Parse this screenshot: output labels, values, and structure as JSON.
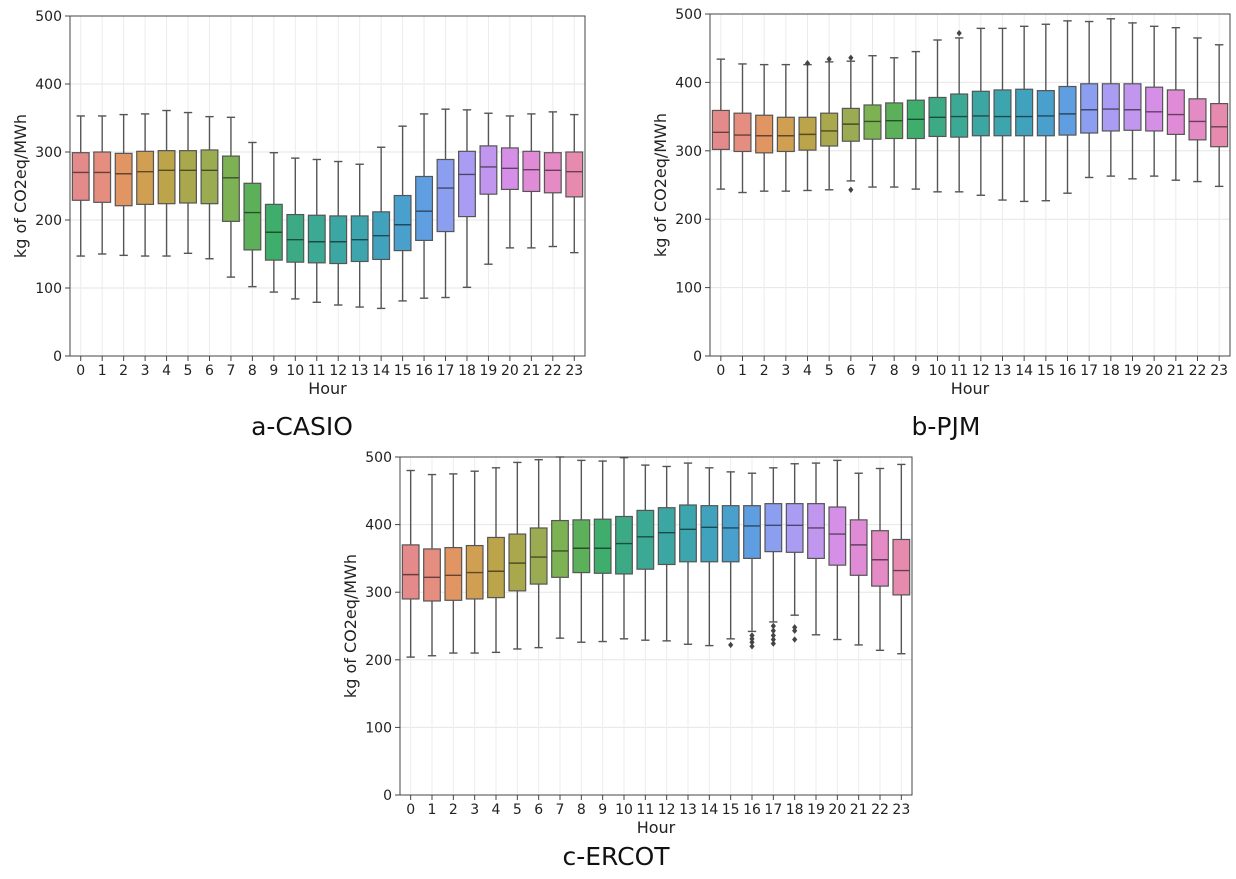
{
  "captions": [
    "a-CASIO",
    "b-PJM",
    "c-ERCOT"
  ],
  "palette": [
    "#e58a8a",
    "#e58d7e",
    "#e19563",
    "#d19f52",
    "#bca44a",
    "#aaa84d",
    "#9bab52",
    "#7cb254",
    "#5cb05a",
    "#3fae6d",
    "#3cab85",
    "#3ca995",
    "#3ca7a2",
    "#3da5ae",
    "#40a2bc",
    "#49a0cc",
    "#5f9ee0",
    "#8b9ef0",
    "#a99cf2",
    "#c096ee",
    "#d68fe6",
    "#e08bd5",
    "#e48ac4",
    "#e68bae"
  ],
  "chart_data": [
    {
      "type": "box",
      "panel": "a-CASIO",
      "xlabel": "Hour",
      "ylabel": "kg of CO2eq/MWh",
      "ylim": [
        0,
        500
      ],
      "yticks": [
        0,
        100,
        200,
        300,
        400,
        500
      ],
      "grid": true,
      "categories": [
        "0",
        "1",
        "2",
        "3",
        "4",
        "5",
        "6",
        "7",
        "8",
        "9",
        "10",
        "11",
        "12",
        "13",
        "14",
        "15",
        "16",
        "17",
        "18",
        "19",
        "20",
        "21",
        "22",
        "23"
      ],
      "boxes": [
        {
          "whislo": 147,
          "q1": 229,
          "med": 270,
          "q3": 299,
          "whishi": 353,
          "fliers": []
        },
        {
          "whislo": 150,
          "q1": 226,
          "med": 270,
          "q3": 300,
          "whishi": 353,
          "fliers": []
        },
        {
          "whislo": 148,
          "q1": 221,
          "med": 268,
          "q3": 298,
          "whishi": 355,
          "fliers": []
        },
        {
          "whislo": 147,
          "q1": 223,
          "med": 271,
          "q3": 301,
          "whishi": 356,
          "fliers": []
        },
        {
          "whislo": 147,
          "q1": 224,
          "med": 273,
          "q3": 302,
          "whishi": 361,
          "fliers": []
        },
        {
          "whislo": 151,
          "q1": 225,
          "med": 273,
          "q3": 302,
          "whishi": 358,
          "fliers": []
        },
        {
          "whislo": 143,
          "q1": 224,
          "med": 273,
          "q3": 303,
          "whishi": 352,
          "fliers": []
        },
        {
          "whislo": 116,
          "q1": 198,
          "med": 262,
          "q3": 294,
          "whishi": 351,
          "fliers": []
        },
        {
          "whislo": 102,
          "q1": 156,
          "med": 211,
          "q3": 254,
          "whishi": 314,
          "fliers": []
        },
        {
          "whislo": 94,
          "q1": 141,
          "med": 182,
          "q3": 223,
          "whishi": 299,
          "fliers": []
        },
        {
          "whislo": 84,
          "q1": 138,
          "med": 171,
          "q3": 208,
          "whishi": 291,
          "fliers": []
        },
        {
          "whislo": 79,
          "q1": 137,
          "med": 168,
          "q3": 207,
          "whishi": 289,
          "fliers": []
        },
        {
          "whislo": 75,
          "q1": 136,
          "med": 168,
          "q3": 206,
          "whishi": 286,
          "fliers": []
        },
        {
          "whislo": 72,
          "q1": 139,
          "med": 171,
          "q3": 206,
          "whishi": 282,
          "fliers": []
        },
        {
          "whislo": 70,
          "q1": 142,
          "med": 177,
          "q3": 212,
          "whishi": 307,
          "fliers": []
        },
        {
          "whislo": 81,
          "q1": 155,
          "med": 193,
          "q3": 236,
          "whishi": 338,
          "fliers": []
        },
        {
          "whislo": 85,
          "q1": 170,
          "med": 213,
          "q3": 264,
          "whishi": 356,
          "fliers": []
        },
        {
          "whislo": 86,
          "q1": 183,
          "med": 247,
          "q3": 289,
          "whishi": 363,
          "fliers": []
        },
        {
          "whislo": 101,
          "q1": 205,
          "med": 267,
          "q3": 301,
          "whishi": 362,
          "fliers": []
        },
        {
          "whislo": 135,
          "q1": 238,
          "med": 278,
          "q3": 309,
          "whishi": 357,
          "fliers": []
        },
        {
          "whislo": 159,
          "q1": 245,
          "med": 276,
          "q3": 306,
          "whishi": 353,
          "fliers": []
        },
        {
          "whislo": 159,
          "q1": 242,
          "med": 274,
          "q3": 301,
          "whishi": 356,
          "fliers": []
        },
        {
          "whislo": 161,
          "q1": 240,
          "med": 273,
          "q3": 299,
          "whishi": 359,
          "fliers": []
        },
        {
          "whislo": 152,
          "q1": 234,
          "med": 271,
          "q3": 300,
          "whishi": 355,
          "fliers": []
        }
      ]
    },
    {
      "type": "box",
      "panel": "b-PJM",
      "xlabel": "Hour",
      "ylabel": "kg of CO2eq/MWh",
      "ylim": [
        0,
        500
      ],
      "yticks": [
        0,
        100,
        200,
        300,
        400,
        500
      ],
      "grid": true,
      "categories": [
        "0",
        "1",
        "2",
        "3",
        "4",
        "5",
        "6",
        "7",
        "8",
        "9",
        "10",
        "11",
        "12",
        "13",
        "14",
        "15",
        "16",
        "17",
        "18",
        "19",
        "20",
        "21",
        "22",
        "23"
      ],
      "boxes": [
        {
          "whislo": 244,
          "q1": 302,
          "med": 327,
          "q3": 359,
          "whishi": 434,
          "fliers": []
        },
        {
          "whislo": 239,
          "q1": 299,
          "med": 323,
          "q3": 355,
          "whishi": 427,
          "fliers": []
        },
        {
          "whislo": 241,
          "q1": 297,
          "med": 322,
          "q3": 352,
          "whishi": 426,
          "fliers": []
        },
        {
          "whislo": 241,
          "q1": 299,
          "med": 322,
          "q3": 349,
          "whishi": 426,
          "fliers": []
        },
        {
          "whislo": 242,
          "q1": 301,
          "med": 324,
          "q3": 349,
          "whishi": 426,
          "fliers": [
            428
          ]
        },
        {
          "whislo": 243,
          "q1": 307,
          "med": 329,
          "q3": 355,
          "whishi": 430,
          "fliers": [
            434
          ]
        },
        {
          "whislo": 256,
          "q1": 314,
          "med": 339,
          "q3": 362,
          "whishi": 431,
          "fliers": [
            436,
            243
          ]
        },
        {
          "whislo": 247,
          "q1": 317,
          "med": 343,
          "q3": 367,
          "whishi": 439,
          "fliers": []
        },
        {
          "whislo": 247,
          "q1": 318,
          "med": 344,
          "q3": 370,
          "whishi": 436,
          "fliers": []
        },
        {
          "whislo": 244,
          "q1": 318,
          "med": 346,
          "q3": 374,
          "whishi": 445,
          "fliers": []
        },
        {
          "whislo": 240,
          "q1": 321,
          "med": 349,
          "q3": 378,
          "whishi": 462,
          "fliers": []
        },
        {
          "whislo": 240,
          "q1": 320,
          "med": 350,
          "q3": 383,
          "whishi": 465,
          "fliers": [
            472
          ]
        },
        {
          "whislo": 235,
          "q1": 322,
          "med": 351,
          "q3": 387,
          "whishi": 479,
          "fliers": []
        },
        {
          "whislo": 228,
          "q1": 322,
          "med": 350,
          "q3": 389,
          "whishi": 479,
          "fliers": []
        },
        {
          "whislo": 226,
          "q1": 322,
          "med": 350,
          "q3": 390,
          "whishi": 482,
          "fliers": []
        },
        {
          "whislo": 227,
          "q1": 322,
          "med": 351,
          "q3": 388,
          "whishi": 485,
          "fliers": []
        },
        {
          "whislo": 238,
          "q1": 323,
          "med": 354,
          "q3": 394,
          "whishi": 490,
          "fliers": []
        },
        {
          "whislo": 261,
          "q1": 326,
          "med": 360,
          "q3": 398,
          "whishi": 489,
          "fliers": []
        },
        {
          "whislo": 263,
          "q1": 329,
          "med": 361,
          "q3": 398,
          "whishi": 493,
          "fliers": []
        },
        {
          "whislo": 259,
          "q1": 330,
          "med": 360,
          "q3": 398,
          "whishi": 487,
          "fliers": []
        },
        {
          "whislo": 263,
          "q1": 329,
          "med": 357,
          "q3": 393,
          "whishi": 482,
          "fliers": []
        },
        {
          "whislo": 257,
          "q1": 324,
          "med": 353,
          "q3": 389,
          "whishi": 480,
          "fliers": []
        },
        {
          "whislo": 255,
          "q1": 316,
          "med": 343,
          "q3": 376,
          "whishi": 465,
          "fliers": []
        },
        {
          "whislo": 248,
          "q1": 306,
          "med": 335,
          "q3": 369,
          "whishi": 455,
          "fliers": []
        }
      ]
    },
    {
      "type": "box",
      "panel": "c-ERCOT",
      "xlabel": "Hour",
      "ylabel": "kg of CO2eq/MWh",
      "ylim": [
        0,
        500
      ],
      "yticks": [
        0,
        100,
        200,
        300,
        400,
        500
      ],
      "grid": true,
      "categories": [
        "0",
        "1",
        "2",
        "3",
        "4",
        "5",
        "6",
        "7",
        "8",
        "9",
        "10",
        "11",
        "12",
        "13",
        "14",
        "15",
        "16",
        "17",
        "18",
        "19",
        "20",
        "21",
        "22",
        "23"
      ],
      "boxes": [
        {
          "whislo": 204,
          "q1": 290,
          "med": 326,
          "q3": 370,
          "whishi": 480,
          "fliers": []
        },
        {
          "whislo": 206,
          "q1": 287,
          "med": 322,
          "q3": 364,
          "whishi": 474,
          "fliers": []
        },
        {
          "whislo": 210,
          "q1": 288,
          "med": 325,
          "q3": 366,
          "whishi": 475,
          "fliers": []
        },
        {
          "whislo": 210,
          "q1": 290,
          "med": 329,
          "q3": 369,
          "whishi": 479,
          "fliers": []
        },
        {
          "whislo": 211,
          "q1": 292,
          "med": 331,
          "q3": 381,
          "whishi": 484,
          "fliers": []
        },
        {
          "whislo": 216,
          "q1": 302,
          "med": 343,
          "q3": 386,
          "whishi": 492,
          "fliers": []
        },
        {
          "whislo": 218,
          "q1": 312,
          "med": 352,
          "q3": 395,
          "whishi": 496,
          "fliers": []
        },
        {
          "whislo": 232,
          "q1": 322,
          "med": 361,
          "q3": 406,
          "whishi": 500,
          "fliers": []
        },
        {
          "whislo": 226,
          "q1": 329,
          "med": 365,
          "q3": 407,
          "whishi": 495,
          "fliers": []
        },
        {
          "whislo": 227,
          "q1": 328,
          "med": 365,
          "q3": 408,
          "whishi": 494,
          "fliers": []
        },
        {
          "whislo": 231,
          "q1": 327,
          "med": 372,
          "q3": 412,
          "whishi": 499,
          "fliers": []
        },
        {
          "whislo": 229,
          "q1": 334,
          "med": 382,
          "q3": 421,
          "whishi": 488,
          "fliers": []
        },
        {
          "whislo": 228,
          "q1": 341,
          "med": 388,
          "q3": 425,
          "whishi": 486,
          "fliers": []
        },
        {
          "whislo": 223,
          "q1": 345,
          "med": 393,
          "q3": 429,
          "whishi": 491,
          "fliers": []
        },
        {
          "whislo": 221,
          "q1": 345,
          "med": 396,
          "q3": 428,
          "whishi": 484,
          "fliers": []
        },
        {
          "whislo": 231,
          "q1": 345,
          "med": 395,
          "q3": 428,
          "whishi": 478,
          "fliers": [
            222
          ]
        },
        {
          "whislo": 242,
          "q1": 350,
          "med": 398,
          "q3": 428,
          "whishi": 476,
          "fliers": [
            236,
            231,
            226,
            220
          ]
        },
        {
          "whislo": 256,
          "q1": 360,
          "med": 399,
          "q3": 431,
          "whishi": 484,
          "fliers": [
            250,
            243,
            236,
            230,
            224
          ]
        },
        {
          "whislo": 266,
          "q1": 359,
          "med": 399,
          "q3": 431,
          "whishi": 490,
          "fliers": [
            248,
            243,
            230
          ]
        },
        {
          "whislo": 237,
          "q1": 350,
          "med": 395,
          "q3": 431,
          "whishi": 491,
          "fliers": []
        },
        {
          "whislo": 230,
          "q1": 340,
          "med": 386,
          "q3": 426,
          "whishi": 495,
          "fliers": []
        },
        {
          "whislo": 222,
          "q1": 325,
          "med": 370,
          "q3": 407,
          "whishi": 476,
          "fliers": []
        },
        {
          "whislo": 214,
          "q1": 309,
          "med": 348,
          "q3": 391,
          "whishi": 483,
          "fliers": []
        },
        {
          "whislo": 209,
          "q1": 296,
          "med": 332,
          "q3": 378,
          "whishi": 489,
          "fliers": []
        }
      ]
    }
  ]
}
